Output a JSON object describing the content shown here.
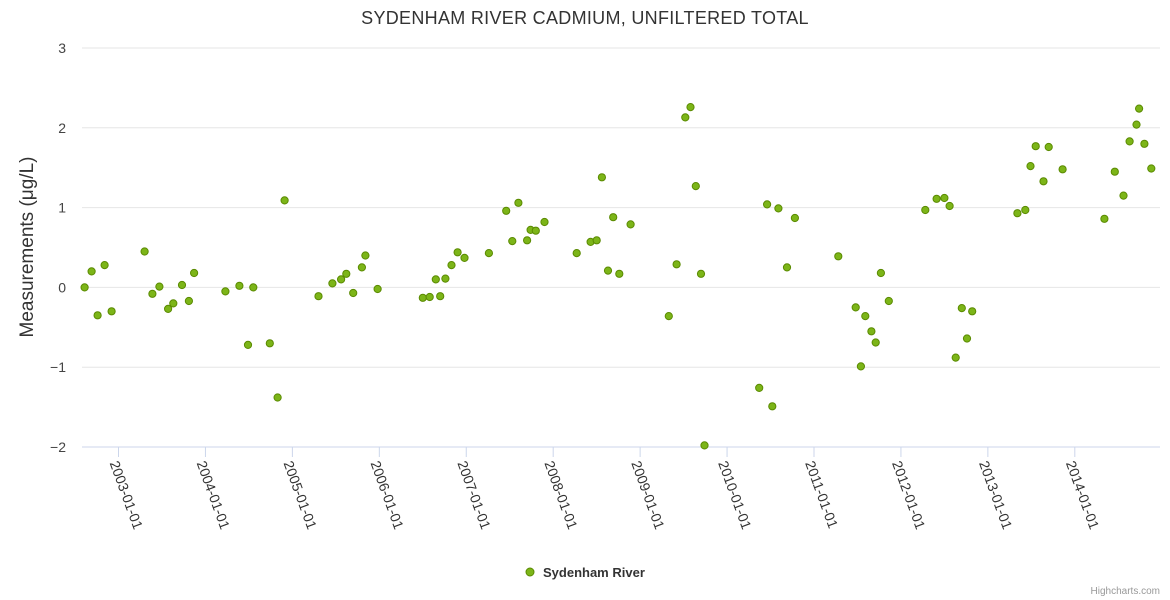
{
  "chart_data": {
    "type": "scatter",
    "title": "SYDENHAM RIVER CADMIUM, UNFILTERED TOTAL",
    "xlabel": "",
    "ylabel": "Measurements (μg/L)",
    "ylim": [
      -2,
      3
    ],
    "yticks": [
      {
        "value": 3,
        "label": "3"
      },
      {
        "value": 2,
        "label": "2"
      },
      {
        "value": 1,
        "label": "1"
      },
      {
        "value": 0,
        "label": "0"
      },
      {
        "value": -1,
        "label": "−1"
      },
      {
        "value": -2,
        "label": "−2"
      }
    ],
    "xlim": [
      2002.58,
      2014.98
    ],
    "xticks": [
      {
        "value": 2003.0,
        "label": "2003-01-01"
      },
      {
        "value": 2004.0,
        "label": "2004-01-01"
      },
      {
        "value": 2005.0,
        "label": "2005-01-01"
      },
      {
        "value": 2006.0,
        "label": "2006-01-01"
      },
      {
        "value": 2007.0,
        "label": "2007-01-01"
      },
      {
        "value": 2008.0,
        "label": "2008-01-01"
      },
      {
        "value": 2009.0,
        "label": "2009-01-01"
      },
      {
        "value": 2010.0,
        "label": "2010-01-01"
      },
      {
        "value": 2011.0,
        "label": "2011-01-01"
      },
      {
        "value": 2012.0,
        "label": "2012-01-01"
      },
      {
        "value": 2013.0,
        "label": "2013-01-01"
      },
      {
        "value": 2014.0,
        "label": "2014-01-01"
      }
    ],
    "legend_position": "bottom-center",
    "series": [
      {
        "name": "Sydenham River",
        "color": "#7cb518",
        "stroke": "#5a8a00",
        "points": [
          [
            2002.61,
            0.0
          ],
          [
            2002.69,
            0.2
          ],
          [
            2002.76,
            -0.35
          ],
          [
            2002.84,
            0.28
          ],
          [
            2002.92,
            -0.3
          ],
          [
            2003.3,
            0.45
          ],
          [
            2003.39,
            -0.08
          ],
          [
            2003.47,
            0.01
          ],
          [
            2003.57,
            -0.27
          ],
          [
            2003.63,
            -0.2
          ],
          [
            2003.73,
            0.03
          ],
          [
            2003.81,
            -0.17
          ],
          [
            2003.87,
            0.18
          ],
          [
            2004.23,
            -0.05
          ],
          [
            2004.39,
            0.02
          ],
          [
            2004.49,
            -0.72
          ],
          [
            2004.55,
            0.0
          ],
          [
            2004.74,
            -0.7
          ],
          [
            2004.83,
            -1.38
          ],
          [
            2004.91,
            1.09
          ],
          [
            2005.3,
            -0.11
          ],
          [
            2005.46,
            0.05
          ],
          [
            2005.56,
            0.1
          ],
          [
            2005.62,
            0.17
          ],
          [
            2005.7,
            -0.07
          ],
          [
            2005.8,
            0.25
          ],
          [
            2005.84,
            0.4
          ],
          [
            2005.98,
            -0.02
          ],
          [
            2006.5,
            -0.13
          ],
          [
            2006.58,
            -0.12
          ],
          [
            2006.65,
            0.1
          ],
          [
            2006.7,
            -0.11
          ],
          [
            2006.76,
            0.11
          ],
          [
            2006.83,
            0.28
          ],
          [
            2006.9,
            0.44
          ],
          [
            2006.98,
            0.37
          ],
          [
            2007.26,
            0.43
          ],
          [
            2007.46,
            0.96
          ],
          [
            2007.53,
            0.58
          ],
          [
            2007.6,
            1.06
          ],
          [
            2007.7,
            0.59
          ],
          [
            2007.74,
            0.72
          ],
          [
            2007.8,
            0.71
          ],
          [
            2007.9,
            0.82
          ],
          [
            2008.27,
            0.43
          ],
          [
            2008.43,
            0.57
          ],
          [
            2008.5,
            0.59
          ],
          [
            2008.56,
            1.38
          ],
          [
            2008.63,
            0.21
          ],
          [
            2008.69,
            0.88
          ],
          [
            2008.76,
            0.17
          ],
          [
            2008.89,
            0.79
          ],
          [
            2009.33,
            -0.36
          ],
          [
            2009.42,
            0.29
          ],
          [
            2009.52,
            2.13
          ],
          [
            2009.58,
            2.26
          ],
          [
            2009.64,
            1.27
          ],
          [
            2009.7,
            0.17
          ],
          [
            2009.74,
            -1.98
          ],
          [
            2010.37,
            -1.26
          ],
          [
            2010.46,
            1.04
          ],
          [
            2010.52,
            -1.49
          ],
          [
            2010.59,
            0.99
          ],
          [
            2010.69,
            0.25
          ],
          [
            2010.78,
            0.87
          ],
          [
            2011.28,
            0.39
          ],
          [
            2011.48,
            -0.25
          ],
          [
            2011.54,
            -0.99
          ],
          [
            2011.59,
            -0.36
          ],
          [
            2011.66,
            -0.55
          ],
          [
            2011.71,
            -0.69
          ],
          [
            2011.77,
            0.18
          ],
          [
            2011.86,
            -0.17
          ],
          [
            2012.28,
            0.97
          ],
          [
            2012.41,
            1.11
          ],
          [
            2012.5,
            1.12
          ],
          [
            2012.56,
            1.02
          ],
          [
            2012.63,
            -0.88
          ],
          [
            2012.7,
            -0.26
          ],
          [
            2012.76,
            -0.64
          ],
          [
            2012.82,
            -0.3
          ],
          [
            2013.34,
            0.93
          ],
          [
            2013.43,
            0.97
          ],
          [
            2013.49,
            1.52
          ],
          [
            2013.55,
            1.77
          ],
          [
            2013.64,
            1.33
          ],
          [
            2013.7,
            1.76
          ],
          [
            2013.86,
            1.48
          ],
          [
            2014.34,
            0.86
          ],
          [
            2014.46,
            1.45
          ],
          [
            2014.56,
            1.15
          ],
          [
            2014.63,
            1.83
          ],
          [
            2014.71,
            2.04
          ],
          [
            2014.74,
            2.24
          ],
          [
            2014.8,
            1.8
          ],
          [
            2014.88,
            1.49
          ]
        ]
      }
    ]
  },
  "credits": "Highcharts.com"
}
